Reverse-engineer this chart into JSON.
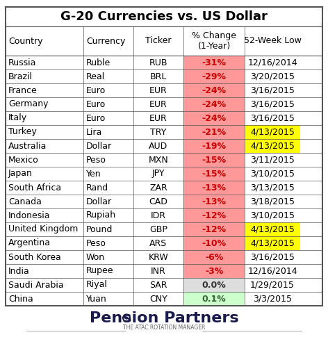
{
  "title": "G-20 Currencies vs. US Dollar",
  "headers": [
    "Country",
    "Currency",
    "Ticker",
    "% Change\n(1-Year)",
    "52-Week Low"
  ],
  "rows": [
    [
      "Russia",
      "Ruble",
      "RUB",
      "-31%",
      "12/16/2014"
    ],
    [
      "Brazil",
      "Real",
      "BRL",
      "-29%",
      "3/20/2015"
    ],
    [
      "France",
      "Euro",
      "EUR",
      "-24%",
      "3/16/2015"
    ],
    [
      "Germany",
      "Euro",
      "EUR",
      "-24%",
      "3/16/2015"
    ],
    [
      "Italy",
      "Euro",
      "EUR",
      "-24%",
      "3/16/2015"
    ],
    [
      "Turkey",
      "Lira",
      "TRY",
      "-21%",
      "4/13/2015"
    ],
    [
      "Australia",
      "Dollar",
      "AUD",
      "-19%",
      "4/13/2015"
    ],
    [
      "Mexico",
      "Peso",
      "MXN",
      "-15%",
      "3/11/2015"
    ],
    [
      "Japan",
      "Yen",
      "JPY",
      "-15%",
      "3/10/2015"
    ],
    [
      "South Africa",
      "Rand",
      "ZAR",
      "-13%",
      "3/13/2015"
    ],
    [
      "Canada",
      "Dollar",
      "CAD",
      "-13%",
      "3/18/2015"
    ],
    [
      "Indonesia",
      "Rupiah",
      "IDR",
      "-12%",
      "3/10/2015"
    ],
    [
      "United Kingdom",
      "Pound",
      "GBP",
      "-12%",
      "4/13/2015"
    ],
    [
      "Argentina",
      "Peso",
      "ARS",
      "-10%",
      "4/13/2015"
    ],
    [
      "South Korea",
      "Won",
      "KRW",
      "-6%",
      "3/16/2015"
    ],
    [
      "India",
      "Rupee",
      "INR",
      "-3%",
      "12/16/2014"
    ],
    [
      "Saudi Arabia",
      "Riyal",
      "SAR",
      "0.0%",
      "1/29/2015"
    ],
    [
      "China",
      "Yuan",
      "CNY",
      "0.1%",
      "3/3/2015"
    ]
  ],
  "pct_col_colors": [
    "#ff9999",
    "#ff9999",
    "#ff9999",
    "#ff9999",
    "#ff9999",
    "#ff9999",
    "#ff9999",
    "#ff9999",
    "#ff9999",
    "#ff9999",
    "#ff9999",
    "#ff9999",
    "#ff9999",
    "#ff9999",
    "#ff9999",
    "#ff9999",
    "#dddddd",
    "#ccffcc"
  ],
  "week_low_col_colors": [
    "white",
    "white",
    "white",
    "white",
    "white",
    "#ffff00",
    "#ffff00",
    "white",
    "white",
    "white",
    "white",
    "white",
    "#ffff00",
    "#ffff00",
    "white",
    "white",
    "white",
    "white"
  ],
  "pct_text_colors": [
    "#cc0000",
    "#cc0000",
    "#cc0000",
    "#cc0000",
    "#cc0000",
    "#cc0000",
    "#cc0000",
    "#cc0000",
    "#cc0000",
    "#cc0000",
    "#cc0000",
    "#cc0000",
    "#cc0000",
    "#cc0000",
    "#cc0000",
    "#cc0000",
    "#333333",
    "#336633"
  ],
  "border_color": "#555555",
  "title_fontsize": 13,
  "header_fontsize": 9,
  "cell_fontsize": 9,
  "logo_text": "Pension Partners",
  "logo_sub": "THE ATAC ROTATION MANAGER"
}
